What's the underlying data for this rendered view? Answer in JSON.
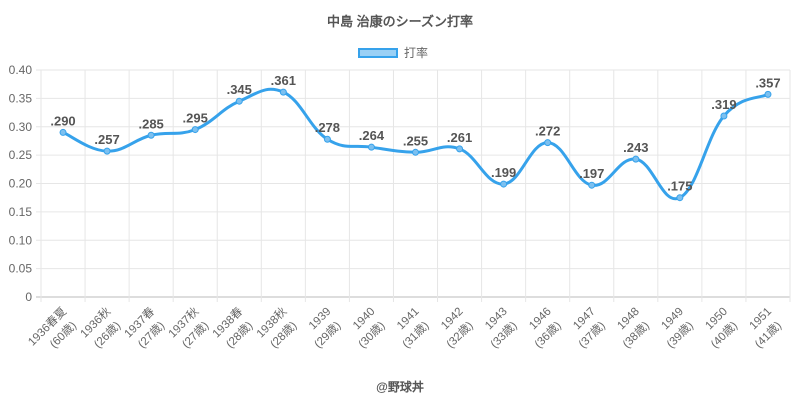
{
  "chart_data": {
    "type": "line",
    "title": "中島 治康のシーズン打率",
    "legend": [
      "打率"
    ],
    "legend_position": "top",
    "credit": "@野球丼",
    "categories": [
      [
        "1936春夏",
        "(60歳)"
      ],
      [
        "1936秋",
        "(26歳)"
      ],
      [
        "1937春",
        "(27歳)"
      ],
      [
        "1937秋",
        "(27歳)"
      ],
      [
        "1938春",
        "(28歳)"
      ],
      [
        "1938秋",
        "(28歳)"
      ],
      [
        "1939",
        "(29歳)"
      ],
      [
        "1940",
        "(30歳)"
      ],
      [
        "1941",
        "(31歳)"
      ],
      [
        "1942",
        "(32歳)"
      ],
      [
        "1943",
        "(33歳)"
      ],
      [
        "1946",
        "(36歳)"
      ],
      [
        "1947",
        "(37歳)"
      ],
      [
        "1948",
        "(38歳)"
      ],
      [
        "1949",
        "(39歳)"
      ],
      [
        "1950",
        "(40歳)"
      ],
      [
        "1951",
        "(41歳)"
      ]
    ],
    "values": [
      0.29,
      0.257,
      0.285,
      0.295,
      0.345,
      0.361,
      0.278,
      0.264,
      0.255,
      0.261,
      0.199,
      0.272,
      0.197,
      0.243,
      0.175,
      0.319,
      0.357
    ],
    "labels": [
      ".290",
      ".257",
      ".285",
      ".295",
      ".345",
      ".361",
      ".278",
      ".264",
      ".255",
      ".261",
      ".199",
      ".272",
      ".197",
      ".243",
      ".175",
      ".319",
      ".357"
    ],
    "yticks": [
      "0",
      "0.05",
      "0.10",
      "0.15",
      "0.20",
      "0.25",
      "0.30",
      "0.35",
      "0.40"
    ],
    "ylim": [
      0,
      0.4
    ],
    "grid": true,
    "color": "#36a2eb"
  }
}
